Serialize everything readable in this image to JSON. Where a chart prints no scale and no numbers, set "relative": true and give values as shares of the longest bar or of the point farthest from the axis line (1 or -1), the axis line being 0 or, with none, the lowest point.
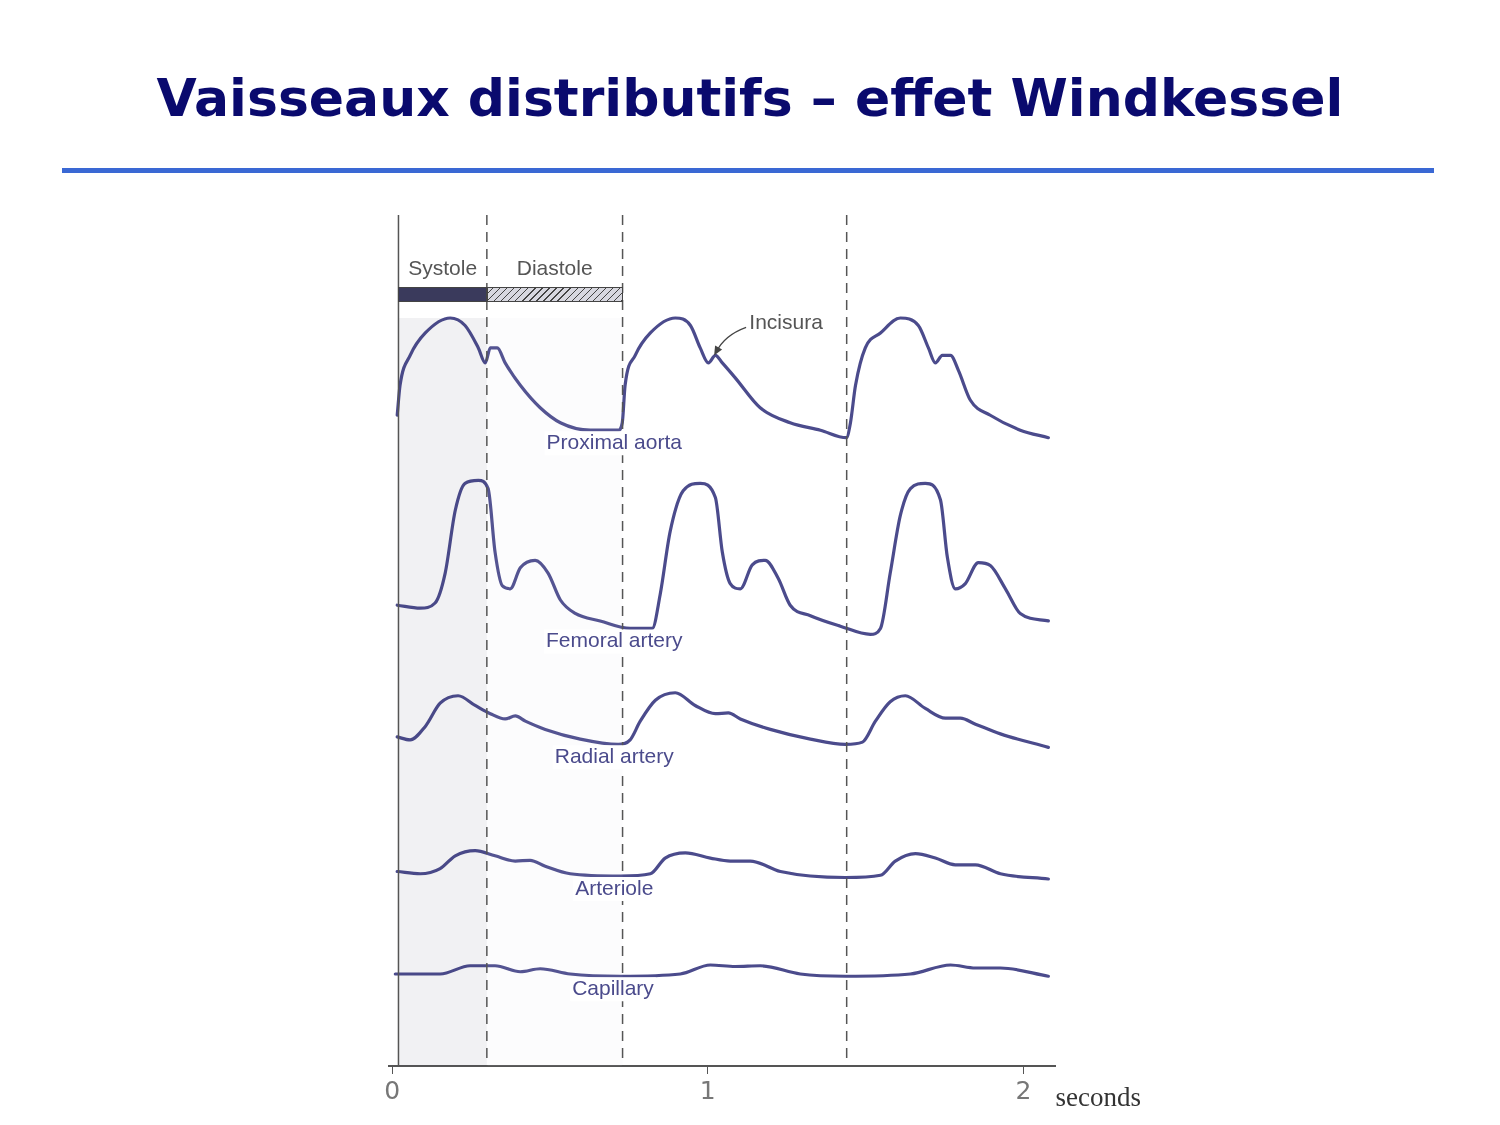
{
  "chart_data": {
    "type": "line",
    "title": "Vaisseaux distributifs – effet Windkessel",
    "xlabel": "seconds",
    "relative": true,
    "xlim": [
      -0.01,
      2.1
    ],
    "xticks": [
      0,
      1,
      2
    ],
    "legend": false,
    "marker": "none",
    "line_style": "solid",
    "grid": false,
    "series": [
      {
        "name": "Proximal aorta",
        "color": "#4b4b8c",
        "x": [
          0.016,
          0.025,
          0.057,
          0.105,
          0.184,
          0.231,
          0.273,
          0.295,
          0.311,
          0.333,
          0.358,
          0.406,
          0.469,
          0.533,
          0.628,
          0.716,
          0.729,
          0.738,
          0.77,
          0.818,
          0.897,
          0.945,
          0.976,
          1.002,
          1.024,
          1.046,
          1.087,
          1.166,
          1.261,
          1.357,
          1.439,
          1.452,
          1.468,
          1.499,
          1.547,
          1.61,
          1.667,
          1.699,
          1.721,
          1.743,
          1.769,
          1.794,
          1.832,
          1.895,
          1.99,
          2.079
        ],
        "values": [
          0.87,
          0.91,
          0.95,
          0.98,
          1.0,
          0.99,
          0.96,
          0.94,
          0.96,
          0.96,
          0.94,
          0.91,
          0.88,
          0.86,
          0.85,
          0.85,
          0.86,
          0.91,
          0.95,
          0.98,
          1.0,
          0.99,
          0.96,
          0.94,
          0.95,
          0.94,
          0.92,
          0.88,
          0.86,
          0.85,
          0.84,
          0.86,
          0.91,
          0.96,
          0.98,
          1.0,
          0.99,
          0.96,
          0.94,
          0.95,
          0.95,
          0.93,
          0.89,
          0.87,
          0.85,
          0.84
        ]
      },
      {
        "name": "Femoral artery",
        "color": "#4b4b8c",
        "x": [
          0.016,
          0.089,
          0.136,
          0.168,
          0.2,
          0.231,
          0.273,
          0.304,
          0.326,
          0.349,
          0.374,
          0.406,
          0.453,
          0.494,
          0.533,
          0.58,
          0.659,
          0.754,
          0.824,
          0.849,
          0.881,
          0.922,
          0.976,
          1.024,
          1.046,
          1.071,
          1.103,
          1.141,
          1.182,
          1.223,
          1.261,
          1.325,
          1.42,
          1.515,
          1.547,
          1.578,
          1.61,
          1.642,
          1.689,
          1.737,
          1.759,
          1.784,
          1.816,
          1.857,
          1.895,
          1.943,
          1.99,
          2.079
        ],
        "values": [
          0.616,
          0.612,
          0.619,
          0.659,
          0.743,
          0.779,
          0.783,
          0.772,
          0.687,
          0.642,
          0.638,
          0.666,
          0.676,
          0.659,
          0.623,
          0.605,
          0.595,
          0.585,
          0.585,
          0.63,
          0.715,
          0.769,
          0.779,
          0.76,
          0.687,
          0.645,
          0.638,
          0.67,
          0.676,
          0.652,
          0.616,
          0.602,
          0.588,
          0.577,
          0.585,
          0.659,
          0.736,
          0.772,
          0.779,
          0.757,
          0.68,
          0.638,
          0.645,
          0.673,
          0.669,
          0.638,
          0.605,
          0.595
        ]
      },
      {
        "name": "Radial artery",
        "color": "#4b4b8c",
        "x": [
          0.016,
          0.057,
          0.105,
          0.152,
          0.209,
          0.263,
          0.311,
          0.358,
          0.39,
          0.422,
          0.485,
          0.596,
          0.716,
          0.754,
          0.786,
          0.834,
          0.897,
          0.96,
          1.024,
          1.065,
          1.103,
          1.198,
          1.325,
          1.436,
          1.49,
          1.531,
          1.578,
          1.626,
          1.689,
          1.753,
          1.8,
          1.848,
          1.927,
          2.079
        ],
        "values": [
          0.44,
          0.436,
          0.454,
          0.485,
          0.495,
          0.482,
          0.471,
          0.464,
          0.468,
          0.461,
          0.45,
          0.437,
          0.43,
          0.436,
          0.461,
          0.489,
          0.499,
          0.482,
          0.471,
          0.472,
          0.464,
          0.45,
          0.437,
          0.43,
          0.433,
          0.461,
          0.487,
          0.495,
          0.478,
          0.465,
          0.465,
          0.457,
          0.444,
          0.426
        ]
      },
      {
        "name": "Arteriole",
        "color": "#4b4b8c",
        "x": [
          0.016,
          0.089,
          0.152,
          0.2,
          0.263,
          0.326,
          0.39,
          0.437,
          0.485,
          0.564,
          0.723,
          0.818,
          0.865,
          0.929,
          1.008,
          1.071,
          1.135,
          1.23,
          1.436,
          1.547,
          1.594,
          1.658,
          1.721,
          1.784,
          1.848,
          1.927,
          2.079
        ],
        "values": [
          0.26,
          0.257,
          0.264,
          0.281,
          0.288,
          0.281,
          0.274,
          0.275,
          0.267,
          0.257,
          0.254,
          0.257,
          0.278,
          0.285,
          0.278,
          0.274,
          0.274,
          0.26,
          0.252,
          0.255,
          0.274,
          0.284,
          0.278,
          0.269,
          0.269,
          0.257,
          0.25
        ]
      },
      {
        "name": "Capillary",
        "color": "#4b4b8c",
        "x": [
          0.01,
          0.152,
          0.247,
          0.326,
          0.406,
          0.469,
          0.564,
          0.723,
          0.913,
          1.008,
          1.087,
          1.166,
          1.293,
          1.436,
          1.642,
          1.769,
          1.848,
          1.927,
          2.079
        ],
        "values": [
          0.123,
          0.123,
          0.134,
          0.134,
          0.126,
          0.13,
          0.123,
          0.12,
          0.123,
          0.135,
          0.133,
          0.134,
          0.123,
          0.12,
          0.123,
          0.135,
          0.131,
          0.131,
          0.12
        ]
      }
    ],
    "ref_lines": [
      {
        "axis": "x",
        "value": 0.02,
        "line_style": "solid",
        "color": "#555555"
      },
      {
        "axis": "x",
        "value": 0.3,
        "line_style": "dashed",
        "color": "#555555"
      },
      {
        "axis": "x",
        "value": 0.73,
        "line_style": "dashed",
        "color": "#555555"
      },
      {
        "axis": "x",
        "value": 1.44,
        "line_style": "dashed",
        "color": "#555555"
      }
    ],
    "bands": [
      {
        "axis": "x",
        "from": 0.02,
        "to": 0.3,
        "label": "Systole",
        "color": "#3a3a5c"
      },
      {
        "axis": "x",
        "from": 0.3,
        "to": 0.73,
        "label": "Diastole",
        "color": "#d8d8e0"
      }
    ],
    "annotations": [
      {
        "text": "Incisura",
        "x": 1.02,
        "y": 0.95
      }
    ]
  }
}
